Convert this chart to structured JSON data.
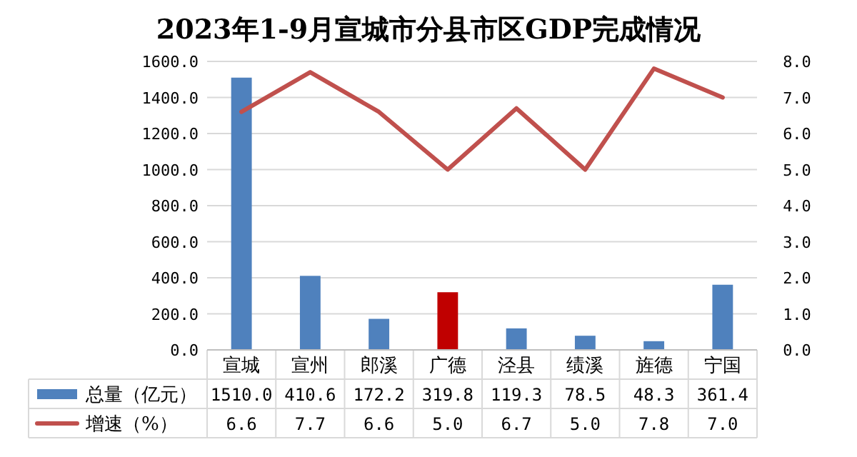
{
  "chart_data": {
    "type": "bar",
    "title": "2023年1-9月宣城市分县市区GDP完成情况",
    "categories": [
      "宣城",
      "宣州",
      "郎溪",
      "广德",
      "泾县",
      "绩溪",
      "旌德",
      "宁国"
    ],
    "series": [
      {
        "name": "总量（亿元）",
        "color": "#4f81bd",
        "colors": [
          "#4f81bd",
          "#4f81bd",
          "#4f81bd",
          "#c00000",
          "#4f81bd",
          "#4f81bd",
          "#4f81bd",
          "#4f81bd"
        ],
        "values": [
          1510.0,
          410.6,
          172.2,
          319.8,
          119.3,
          78.5,
          48.3,
          361.4
        ],
        "value_labels": [
          "1510.0",
          "410.6",
          "172.2",
          "319.8",
          "119.3",
          "78.5",
          "48.3",
          "361.4"
        ]
      },
      {
        "name": "增速（%）",
        "type": "line",
        "axis": "y2",
        "color": "#c0504d",
        "values": [
          6.6,
          7.7,
          6.6,
          5.0,
          6.7,
          5.0,
          7.8,
          7.0
        ],
        "value_labels": [
          "6.6",
          "7.7",
          "6.6",
          "5.0",
          "6.7",
          "5.0",
          "7.8",
          "7.0"
        ]
      }
    ],
    "ylim": [
      0,
      1600
    ],
    "yticks": [
      {
        "value": 0,
        "label": "0.0"
      },
      {
        "value": 200,
        "label": "200.0"
      },
      {
        "value": 400,
        "label": "400.0"
      },
      {
        "value": 600,
        "label": "600.0"
      },
      {
        "value": 800,
        "label": "800.0"
      },
      {
        "value": 1000,
        "label": "1000.0"
      },
      {
        "value": 1200,
        "label": "1200.0"
      },
      {
        "value": 1400,
        "label": "1400.0"
      },
      {
        "value": 1600,
        "label": "1600.0"
      }
    ],
    "y2lim": [
      0,
      8
    ],
    "y2ticks": [
      {
        "value": 0,
        "label": "0.0"
      },
      {
        "value": 1,
        "label": "1.0"
      },
      {
        "value": 2,
        "label": "2.0"
      },
      {
        "value": 3,
        "label": "3.0"
      },
      {
        "value": 4,
        "label": "4.0"
      },
      {
        "value": 5,
        "label": "5.0"
      },
      {
        "value": 6,
        "label": "6.0"
      },
      {
        "value": 7,
        "label": "7.0"
      },
      {
        "value": 8,
        "label": "8.0"
      }
    ],
    "grid": "y",
    "legend": "bottom"
  }
}
